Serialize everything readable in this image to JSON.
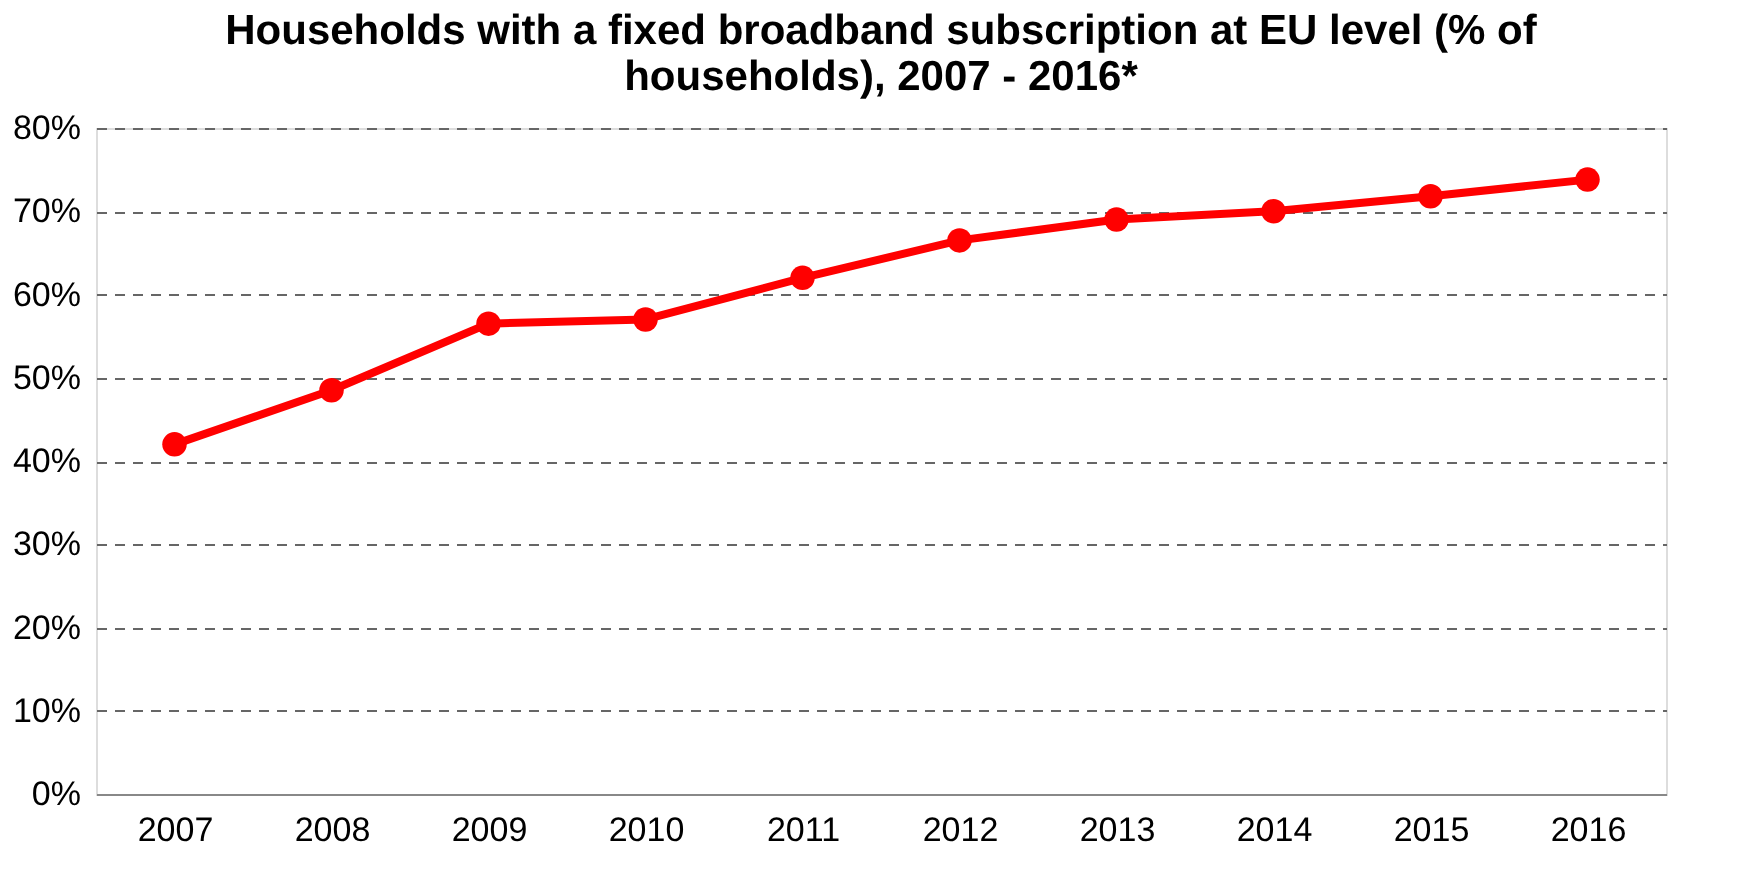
{
  "chart_data": {
    "type": "line",
    "title": "Households with a fixed broadband subscription at EU level (% of households), 2007 - 2016*",
    "categories": [
      "2007",
      "2008",
      "2009",
      "2010",
      "2011",
      "2012",
      "2013",
      "2014",
      "2015",
      "2016"
    ],
    "series": [
      {
        "color": "#ff0000",
        "values": [
          42,
          48.5,
          56.5,
          57,
          62,
          66.5,
          69,
          70,
          71.8,
          73.8
        ]
      }
    ],
    "ylim": [
      0,
      80
    ],
    "yticks": [
      {
        "value": 0,
        "label": "0%"
      },
      {
        "value": 10,
        "label": "10%"
      },
      {
        "value": 20,
        "label": "20%"
      },
      {
        "value": 30,
        "label": "30%"
      },
      {
        "value": 40,
        "label": "40%"
      },
      {
        "value": 50,
        "label": "50%"
      },
      {
        "value": 60,
        "label": "60%"
      },
      {
        "value": 70,
        "label": "70%"
      },
      {
        "value": 80,
        "label": "80%"
      }
    ],
    "grid": "y",
    "marker": "circle",
    "line_style": "solid",
    "legend": false
  }
}
